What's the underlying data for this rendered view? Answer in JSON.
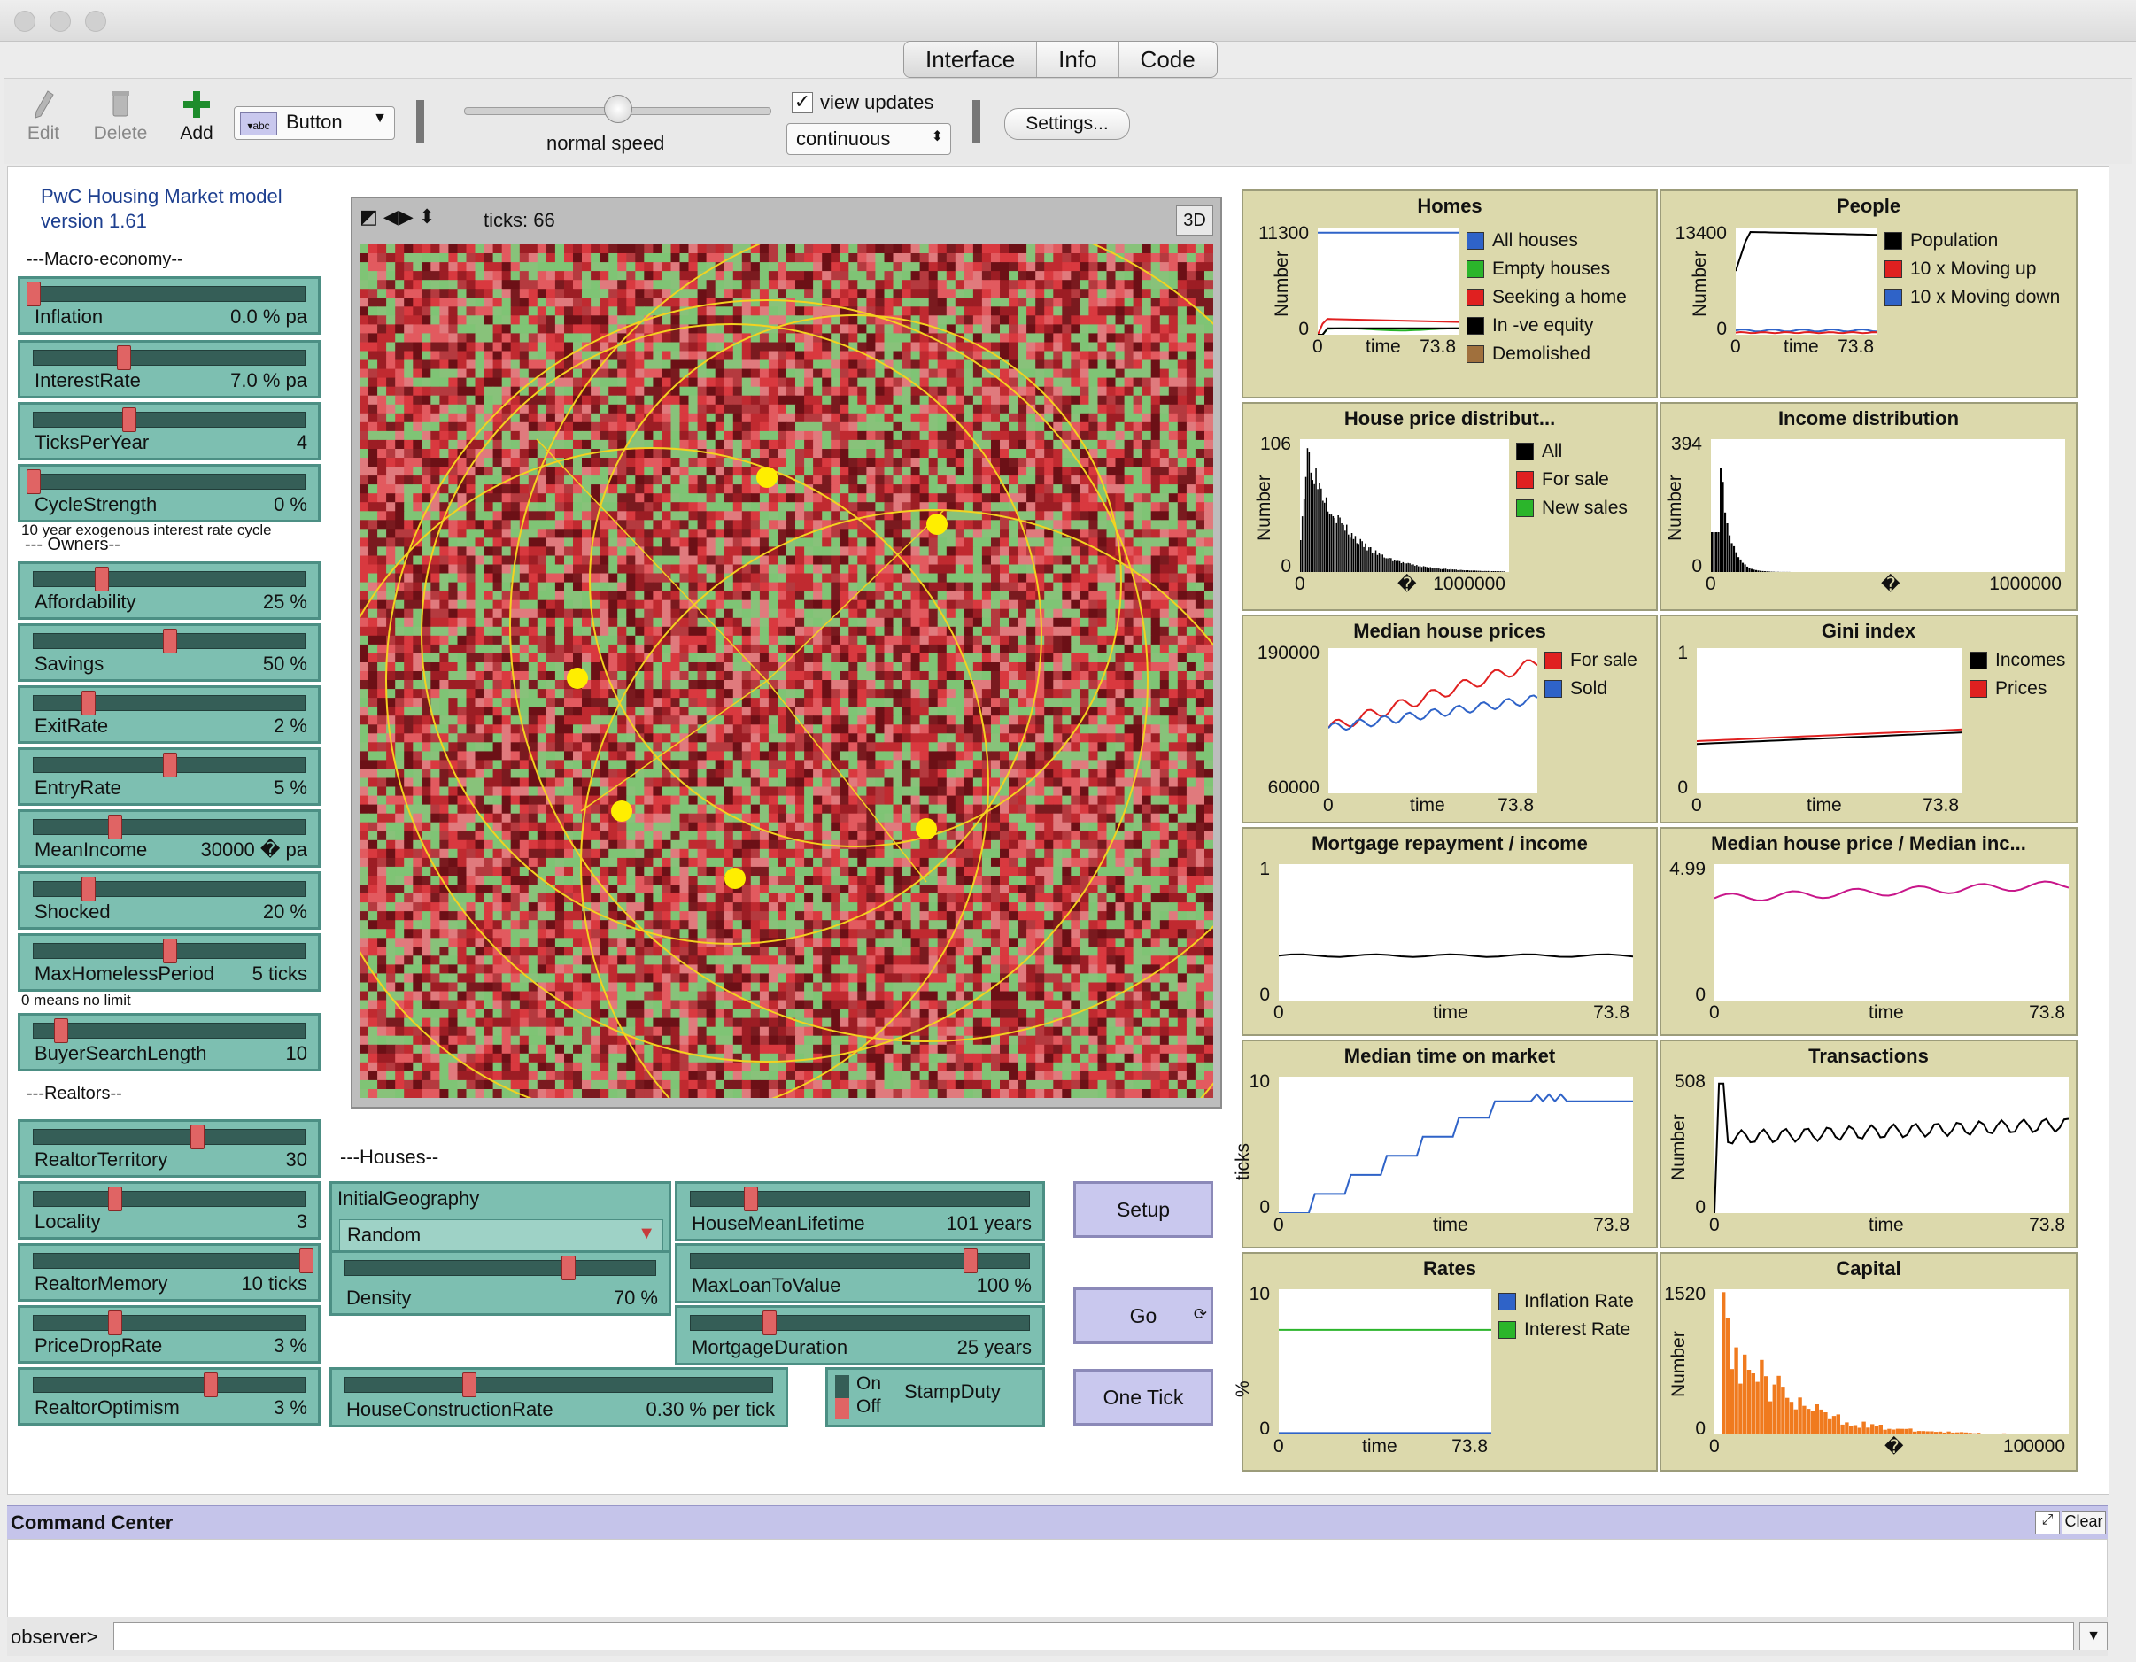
{
  "window": {
    "tabs": [
      "Interface",
      "Info",
      "Code"
    ],
    "active_tab": "Interface"
  },
  "toolbar": {
    "edit": "Edit",
    "delete": "Delete",
    "add": "Add",
    "widget_type": "Button",
    "speed_label": "normal speed",
    "speed_value": 0.5,
    "view_updates_label": "view updates",
    "view_updates_checked": true,
    "update_mode": "continuous",
    "settings": "Settings..."
  },
  "model": {
    "title_line1": "PwC Housing Market model",
    "title_line2": "version 1.61"
  },
  "sections": {
    "macro": "---Macro-economy--",
    "owners": "--- Owners--",
    "realtors": "---Realtors--",
    "houses": "---Houses--",
    "cycle_note": "10 year exogenous interest rate cycle",
    "homeless_note": "0 means no limit"
  },
  "sliders": [
    {
      "label": "Inflation",
      "value": "0.0 % pa",
      "pos": 0.0
    },
    {
      "label": "InterestRate",
      "value": "7.0 % pa",
      "pos": 0.33
    },
    {
      "label": "TicksPerYear",
      "value": "4",
      "pos": 0.35
    },
    {
      "label": "CycleStrength",
      "value": "0 %",
      "pos": 0.0
    },
    {
      "label": "Affordability",
      "value": "25 %",
      "pos": 0.25
    },
    {
      "label": "Savings",
      "value": "50 %",
      "pos": 0.5
    },
    {
      "label": "ExitRate",
      "value": "2 %",
      "pos": 0.2
    },
    {
      "label": "EntryRate",
      "value": "5 %",
      "pos": 0.5
    },
    {
      "label": "MeanIncome",
      "value": "30000 � pa",
      "pos": 0.3
    },
    {
      "label": "Shocked",
      "value": "20 %",
      "pos": 0.2
    },
    {
      "label": "MaxHomelessPeriod",
      "value": "5 ticks",
      "pos": 0.5
    },
    {
      "label": "BuyerSearchLength",
      "value": "10",
      "pos": 0.1
    }
  ],
  "realtor_sliders": [
    {
      "label": "RealtorTerritory",
      "value": "30",
      "pos": 0.6
    },
    {
      "label": "Locality",
      "value": "3",
      "pos": 0.3
    },
    {
      "label": "RealtorMemory",
      "value": "10 ticks",
      "pos": 1.0
    },
    {
      "label": "PriceDropRate",
      "value": "3 %",
      "pos": 0.3
    },
    {
      "label": "RealtorOptimism",
      "value": "3 %",
      "pos": 0.65
    }
  ],
  "house_widgets": {
    "geography_label": "InitialGeography",
    "geography_value": "Random",
    "density": {
      "label": "Density",
      "value": "70 %",
      "pos": 0.7
    },
    "construction": {
      "label": "HouseConstructionRate",
      "value": "0.30 % per tick",
      "pos": 0.3
    },
    "lifetime": {
      "label": "HouseMeanLifetime",
      "value": "101 years",
      "pos": 0.2
    },
    "maxloan": {
      "label": "MaxLoanToValue",
      "value": "100 %",
      "pos": 0.8
    },
    "mortgage": {
      "label": "MortgageDuration",
      "value": "25 years",
      "pos": 0.25
    },
    "stampduty": {
      "label": "StampDuty",
      "on": "On",
      "off": "Off"
    }
  },
  "buttons": {
    "setup": "Setup",
    "go": "Go",
    "onetick": "One Tick"
  },
  "world": {
    "ticks_label": "ticks: 66",
    "btn3d": "3D"
  },
  "plots": {
    "homes": {
      "title": "Homes",
      "ylabel": "Number",
      "ymax": "11300",
      "ymin": "0",
      "xmin": "0",
      "xlabel": "time",
      "xmax": "73.8",
      "legend": [
        {
          "name": "All houses",
          "color": "#2f63c8"
        },
        {
          "name": "Empty houses",
          "color": "#2bb52b"
        },
        {
          "name": "Seeking a home",
          "color": "#e02020"
        },
        {
          "name": "In -ve equity",
          "color": "#000000"
        },
        {
          "name": "Demolished",
          "color": "#a0703d"
        }
      ]
    },
    "people": {
      "title": "People",
      "ylabel": "Number",
      "ymax": "13400",
      "ymin": "0",
      "xmin": "0",
      "xlabel": "time",
      "xmax": "73.8",
      "legend": [
        {
          "name": "Population",
          "color": "#000000"
        },
        {
          "name": "10 x Moving up",
          "color": "#e02020"
        },
        {
          "name": "10 x Moving down",
          "color": "#2f63c8"
        }
      ]
    },
    "price_dist": {
      "title": "House price distribut...",
      "ylabel": "Number",
      "ymax": "106",
      "ymin": "0",
      "xmin": "0",
      "xmid": "�",
      "xmax": "1000000",
      "legend": [
        {
          "name": "All",
          "color": "#000000"
        },
        {
          "name": "For sale",
          "color": "#e02020"
        },
        {
          "name": "New sales",
          "color": "#2bb52b"
        }
      ]
    },
    "income_dist": {
      "title": "Income distribution",
      "ylabel": "Number",
      "ymax": "394",
      "ymin": "0",
      "xmin": "0",
      "xmid": "�",
      "xmax": "1000000"
    },
    "median_prices": {
      "title": "Median house prices",
      "ymax": "190000",
      "ymin": "60000",
      "xmin": "0",
      "xlabel": "time",
      "xmax": "73.8",
      "legend": [
        {
          "name": "For sale",
          "color": "#e02020"
        },
        {
          "name": "Sold",
          "color": "#2f63c8"
        }
      ]
    },
    "gini": {
      "title": "Gini index",
      "ymax": "1",
      "ymin": "0",
      "xmin": "0",
      "xlabel": "time",
      "xmax": "73.8",
      "legend": [
        {
          "name": "Incomes",
          "color": "#000000"
        },
        {
          "name": "Prices",
          "color": "#e02020"
        }
      ]
    },
    "mortgage_income": {
      "title": "Mortgage repayment / income",
      "ymax": "1",
      "ymin": "0",
      "xmin": "0",
      "xlabel": "time",
      "xmax": "73.8"
    },
    "price_income": {
      "title": "Median house price / Median inc...",
      "ymax": "4.99",
      "ymin": "0",
      "xmin": "0",
      "xlabel": "time",
      "xmax": "73.8"
    },
    "time_on_market": {
      "title": "Median time on market",
      "ylabel": "ticks",
      "ymax": "10",
      "ymin": "0",
      "xmin": "0",
      "xlabel": "time",
      "xmax": "73.8"
    },
    "transactions": {
      "title": "Transactions",
      "ylabel": "Number",
      "ymax": "508",
      "ymin": "0",
      "xmin": "0",
      "xlabel": "time",
      "xmax": "73.8"
    },
    "rates": {
      "title": "Rates",
      "ylabel": "%",
      "ymax": "10",
      "ymin": "0",
      "xmin": "0",
      "xlabel": "time",
      "xmax": "73.8",
      "legend": [
        {
          "name": "Inflation Rate",
          "color": "#2f63c8"
        },
        {
          "name": "Interest Rate",
          "color": "#2bb52b"
        }
      ]
    },
    "capital": {
      "title": "Capital",
      "ylabel": "Number",
      "ymax": "1520",
      "ymin": "0",
      "xmin": "0",
      "xmid": "�",
      "xmax": "100000"
    }
  },
  "command_center": {
    "title": "Command Center",
    "clear": "Clear",
    "prompt": "observer>",
    "input": ""
  }
}
